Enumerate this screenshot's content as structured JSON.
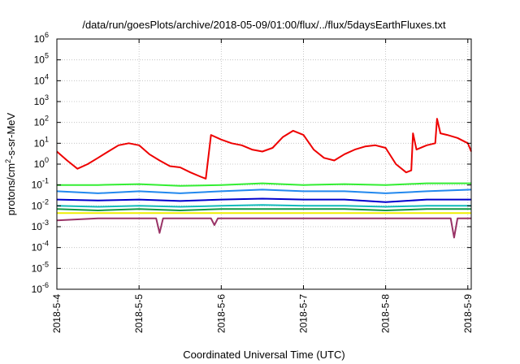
{
  "chart_data": {
    "type": "line",
    "title": "/data/run/goesPlots/archive/2018-05-09/01:00/flux/../flux/5daysEarthFluxes.txt",
    "xlabel": "Coordinated Universal Time (UTC)",
    "ylabel": {
      "base": "protons/cm",
      "sup": "2",
      "rest": "-s-sr-MeV"
    },
    "y_scale": "log",
    "ylim": [
      1e-06,
      1000000.0
    ],
    "y_ticks": [
      {
        "value": 1e-06,
        "exp": "-6"
      },
      {
        "value": 1e-05,
        "exp": "-5"
      },
      {
        "value": 0.0001,
        "exp": "-4"
      },
      {
        "value": 0.001,
        "exp": "-3"
      },
      {
        "value": 0.01,
        "exp": "-2"
      },
      {
        "value": 0.1,
        "exp": "-1"
      },
      {
        "value": 1,
        "exp": "0"
      },
      {
        "value": 10,
        "exp": "1"
      },
      {
        "value": 100,
        "exp": "2"
      },
      {
        "value": 1000,
        "exp": "3"
      },
      {
        "value": 10000,
        "exp": "4"
      },
      {
        "value": 100000,
        "exp": "5"
      },
      {
        "value": 1000000,
        "exp": "6"
      }
    ],
    "xlim": [
      "2018-05-04T00:00",
      "2018-05-09T01:00"
    ],
    "x_ticks": [
      {
        "date": "2018-05-04T00:00",
        "label": "2018-5-4"
      },
      {
        "date": "2018-05-05T00:00",
        "label": "2018-5-5"
      },
      {
        "date": "2018-05-06T00:00",
        "label": "2018-5-6"
      },
      {
        "date": "2018-05-07T00:00",
        "label": "2018-5-7"
      },
      {
        "date": "2018-05-08T00:00",
        "label": "2018-5-8"
      },
      {
        "date": "2018-05-09T00:00",
        "label": "2018-5-9"
      }
    ],
    "grid": true,
    "legend": "none",
    "series": [
      {
        "color": "#ee0000",
        "points": [
          [
            "2018-05-04T00:00",
            4
          ],
          [
            "2018-05-04T03:00",
            1.5
          ],
          [
            "2018-05-04T06:00",
            0.6
          ],
          [
            "2018-05-04T09:00",
            1
          ],
          [
            "2018-05-04T12:00",
            2
          ],
          [
            "2018-05-04T15:00",
            4
          ],
          [
            "2018-05-04T18:00",
            8
          ],
          [
            "2018-05-04T21:00",
            10
          ],
          [
            "2018-05-05T00:00",
            8
          ],
          [
            "2018-05-05T03:00",
            3
          ],
          [
            "2018-05-05T06:00",
            1.5
          ],
          [
            "2018-05-05T09:00",
            0.8
          ],
          [
            "2018-05-05T12:00",
            0.7
          ],
          [
            "2018-05-05T15:00",
            0.4
          ],
          [
            "2018-05-05T18:00",
            0.25
          ],
          [
            "2018-05-05T19:30",
            0.2
          ],
          [
            "2018-05-05T21:00",
            25
          ],
          [
            "2018-05-06T00:00",
            15
          ],
          [
            "2018-05-06T03:00",
            10
          ],
          [
            "2018-05-06T06:00",
            8
          ],
          [
            "2018-05-06T09:00",
            5
          ],
          [
            "2018-05-06T12:00",
            4
          ],
          [
            "2018-05-06T15:00",
            6
          ],
          [
            "2018-05-06T18:00",
            20
          ],
          [
            "2018-05-06T21:00",
            40
          ],
          [
            "2018-05-07T00:00",
            25
          ],
          [
            "2018-05-07T03:00",
            5
          ],
          [
            "2018-05-07T06:00",
            2
          ],
          [
            "2018-05-07T09:00",
            1.5
          ],
          [
            "2018-05-07T12:00",
            3
          ],
          [
            "2018-05-07T15:00",
            5
          ],
          [
            "2018-05-07T18:00",
            7
          ],
          [
            "2018-05-07T21:00",
            8
          ],
          [
            "2018-05-08T00:00",
            6
          ],
          [
            "2018-05-08T03:00",
            1
          ],
          [
            "2018-05-08T06:00",
            0.4
          ],
          [
            "2018-05-08T07:30",
            0.5
          ],
          [
            "2018-05-08T08:00",
            30
          ],
          [
            "2018-05-08T09:00",
            5
          ],
          [
            "2018-05-08T12:00",
            8
          ],
          [
            "2018-05-08T14:30",
            10
          ],
          [
            "2018-05-08T15:00",
            150
          ],
          [
            "2018-05-08T16:00",
            30
          ],
          [
            "2018-05-08T18:00",
            25
          ],
          [
            "2018-05-08T21:00",
            18
          ],
          [
            "2018-05-09T00:00",
            10
          ],
          [
            "2018-05-09T01:00",
            4
          ]
        ]
      },
      {
        "color": "#33ee33",
        "points": [
          [
            "2018-05-04T00:00",
            0.1
          ],
          [
            "2018-05-04T12:00",
            0.1
          ],
          [
            "2018-05-05T00:00",
            0.11
          ],
          [
            "2018-05-05T12:00",
            0.09
          ],
          [
            "2018-05-06T00:00",
            0.1
          ],
          [
            "2018-05-06T12:00",
            0.12
          ],
          [
            "2018-05-07T00:00",
            0.1
          ],
          [
            "2018-05-07T12:00",
            0.11
          ],
          [
            "2018-05-08T00:00",
            0.1
          ],
          [
            "2018-05-08T12:00",
            0.12
          ],
          [
            "2018-05-09T01:00",
            0.12
          ]
        ]
      },
      {
        "color": "#2288ee",
        "points": [
          [
            "2018-05-04T00:00",
            0.05
          ],
          [
            "2018-05-04T12:00",
            0.04
          ],
          [
            "2018-05-05T00:00",
            0.05
          ],
          [
            "2018-05-05T12:00",
            0.04
          ],
          [
            "2018-05-06T00:00",
            0.05
          ],
          [
            "2018-05-06T12:00",
            0.06
          ],
          [
            "2018-05-07T00:00",
            0.05
          ],
          [
            "2018-05-07T12:00",
            0.05
          ],
          [
            "2018-05-08T00:00",
            0.04
          ],
          [
            "2018-05-08T12:00",
            0.05
          ],
          [
            "2018-05-09T01:00",
            0.06
          ]
        ]
      },
      {
        "color": "#0000cc",
        "points": [
          [
            "2018-05-04T00:00",
            0.02
          ],
          [
            "2018-05-04T12:00",
            0.018
          ],
          [
            "2018-05-05T00:00",
            0.02
          ],
          [
            "2018-05-05T12:00",
            0.017
          ],
          [
            "2018-05-06T00:00",
            0.02
          ],
          [
            "2018-05-06T12:00",
            0.022
          ],
          [
            "2018-05-07T00:00",
            0.02
          ],
          [
            "2018-05-07T12:00",
            0.02
          ],
          [
            "2018-05-08T00:00",
            0.015
          ],
          [
            "2018-05-08T12:00",
            0.02
          ],
          [
            "2018-05-09T01:00",
            0.02
          ]
        ]
      },
      {
        "color": "#11bbbb",
        "points": [
          [
            "2018-05-04T00:00",
            0.01
          ],
          [
            "2018-05-04T12:00",
            0.009
          ],
          [
            "2018-05-05T00:00",
            0.01
          ],
          [
            "2018-05-05T12:00",
            0.009
          ],
          [
            "2018-05-06T00:00",
            0.01
          ],
          [
            "2018-05-06T12:00",
            0.011
          ],
          [
            "2018-05-07T00:00",
            0.01
          ],
          [
            "2018-05-07T12:00",
            0.01
          ],
          [
            "2018-05-08T00:00",
            0.009
          ],
          [
            "2018-05-08T12:00",
            0.01
          ],
          [
            "2018-05-09T01:00",
            0.01
          ]
        ]
      },
      {
        "color": "#119944",
        "points": [
          [
            "2018-05-04T00:00",
            0.007
          ],
          [
            "2018-05-04T12:00",
            0.006
          ],
          [
            "2018-05-05T00:00",
            0.007
          ],
          [
            "2018-05-05T12:00",
            0.006
          ],
          [
            "2018-05-06T00:00",
            0.007
          ],
          [
            "2018-05-06T12:00",
            0.007
          ],
          [
            "2018-05-07T00:00",
            0.007
          ],
          [
            "2018-05-07T12:00",
            0.007
          ],
          [
            "2018-05-08T00:00",
            0.006
          ],
          [
            "2018-05-08T12:00",
            0.007
          ],
          [
            "2018-05-09T01:00",
            0.007
          ]
        ]
      },
      {
        "color": "#eeee00",
        "points": [
          [
            "2018-05-04T00:00",
            0.0045
          ],
          [
            "2018-05-04T12:00",
            0.0045
          ],
          [
            "2018-05-05T00:00",
            0.0045
          ],
          [
            "2018-05-05T12:00",
            0.0045
          ],
          [
            "2018-05-06T00:00",
            0.0045
          ],
          [
            "2018-05-06T12:00",
            0.0045
          ],
          [
            "2018-05-07T00:00",
            0.0045
          ],
          [
            "2018-05-07T12:00",
            0.0045
          ],
          [
            "2018-05-08T00:00",
            0.0045
          ],
          [
            "2018-05-08T12:00",
            0.0045
          ],
          [
            "2018-05-09T01:00",
            0.0045
          ]
        ]
      },
      {
        "color": "#993366",
        "points": [
          [
            "2018-05-04T00:00",
            0.002
          ],
          [
            "2018-05-04T12:00",
            0.0025
          ],
          [
            "2018-05-05T00:00",
            0.0025
          ],
          [
            "2018-05-05T05:00",
            0.0025
          ],
          [
            "2018-05-05T06:00",
            0.0005
          ],
          [
            "2018-05-05T07:00",
            0.0025
          ],
          [
            "2018-05-05T21:00",
            0.0025
          ],
          [
            "2018-05-05T22:00",
            0.0012
          ],
          [
            "2018-05-05T23:00",
            0.0025
          ],
          [
            "2018-05-06T12:00",
            0.0025
          ],
          [
            "2018-05-07T00:00",
            0.0025
          ],
          [
            "2018-05-07T12:00",
            0.0025
          ],
          [
            "2018-05-08T00:00",
            0.0025
          ],
          [
            "2018-05-08T19:00",
            0.0025
          ],
          [
            "2018-05-08T20:00",
            0.0003
          ],
          [
            "2018-05-08T21:00",
            0.0025
          ],
          [
            "2018-05-09T01:00",
            0.0025
          ]
        ]
      }
    ]
  }
}
